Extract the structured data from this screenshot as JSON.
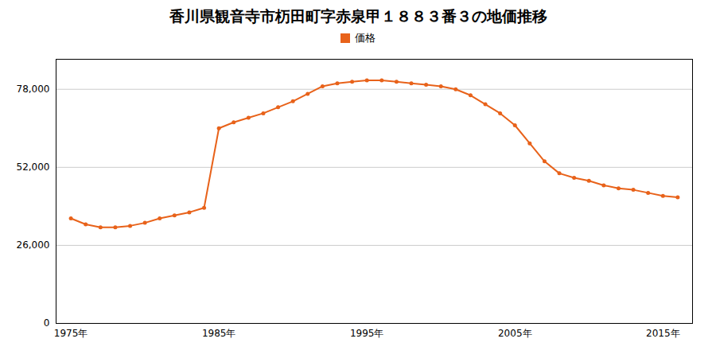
{
  "chart_data": {
    "type": "line",
    "title": "香川県観音寺市杤田町字赤泉甲１８８３番３の地価推移",
    "x": [
      1975,
      1976,
      1977,
      1978,
      1979,
      1980,
      1981,
      1982,
      1983,
      1984,
      1985,
      1986,
      1987,
      1988,
      1989,
      1990,
      1991,
      1992,
      1993,
      1994,
      1995,
      1996,
      1997,
      1998,
      1999,
      2000,
      2001,
      2002,
      2003,
      2004,
      2005,
      2006,
      2007,
      2008,
      2009,
      2010,
      2011,
      2012,
      2013,
      2014,
      2015,
      2016
    ],
    "series": [
      {
        "name": "価格",
        "color": "#E8621A",
        "marker": "circle",
        "values": [
          35000,
          33000,
          32000,
          32000,
          32500,
          33500,
          35000,
          36000,
          37000,
          38500,
          65000,
          67000,
          68500,
          70000,
          72000,
          74000,
          76500,
          79000,
          80000,
          80500,
          81000,
          81000,
          80500,
          80000,
          79500,
          79000,
          78000,
          76000,
          73000,
          70000,
          66000,
          60000,
          54000,
          50000,
          48500,
          47500,
          46000,
          45000,
          44500,
          43500,
          42500,
          42000
        ]
      }
    ],
    "xlim": [
      1974,
      2017
    ],
    "xticks": [
      {
        "value": 1975,
        "label": "1975年"
      },
      {
        "value": 1985,
        "label": "1985年"
      },
      {
        "value": 1995,
        "label": "1995年"
      },
      {
        "value": 2005,
        "label": "2005年"
      },
      {
        "value": 2015,
        "label": "2015年"
      }
    ],
    "ylim": [
      0,
      88000
    ],
    "yticks": [
      0,
      {
        "value": 26000,
        "label": "26,000"
      },
      {
        "value": 52000,
        "label": "52,000"
      },
      {
        "value": 78000,
        "label": "78,000"
      }
    ],
    "grid": "y",
    "legend": "top"
  }
}
